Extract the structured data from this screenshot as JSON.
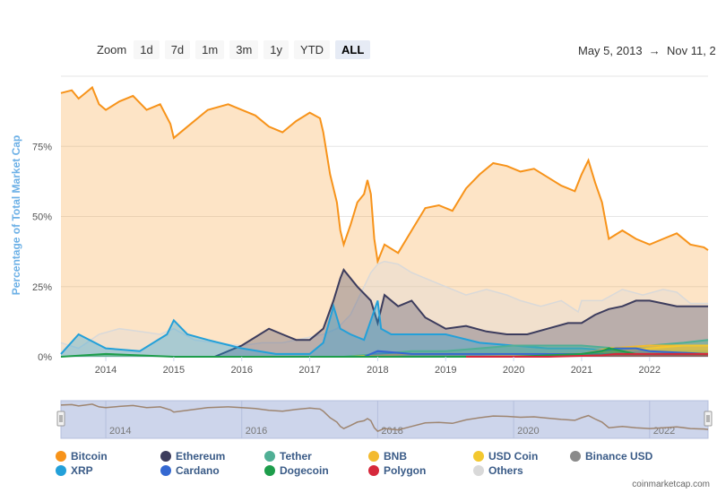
{
  "zoom": {
    "label": "Zoom",
    "buttons": [
      "1d",
      "7d",
      "1m",
      "3m",
      "1y",
      "YTD",
      "ALL"
    ],
    "active": "ALL"
  },
  "range": {
    "from": "May 5, 2013",
    "arrow": "→",
    "to": "Nov 11, 2"
  },
  "credit": "coinmarketcap.com",
  "colors": {
    "accent": "#3c8fd6",
    "bitcoin_fill": "#fde3c8",
    "navigator_fill": "#cdd5eb"
  },
  "chart_data": {
    "type": "area",
    "ylabel": "Percentage of Total Market Cap",
    "xlabel": "",
    "x_ticks": [
      "2014",
      "2015",
      "2016",
      "2017",
      "2018",
      "2019",
      "2020",
      "2021",
      "2022"
    ],
    "y_ticks": [
      "0%",
      "25%",
      "50%",
      "75%"
    ],
    "ylim": [
      0,
      100
    ],
    "xlim": [
      2013.34,
      2022.86
    ],
    "navigator_ticks": [
      "2014",
      "2016",
      "2018",
      "2020",
      "2022"
    ],
    "series": [
      {
        "name": "Bitcoin",
        "color": "#f7931a",
        "x": [
          2013.34,
          2013.5,
          2013.6,
          2013.8,
          2013.9,
          2014.0,
          2014.2,
          2014.4,
          2014.6,
          2014.8,
          2014.95,
          2015.0,
          2015.2,
          2015.5,
          2015.8,
          2016.0,
          2016.2,
          2016.4,
          2016.6,
          2016.8,
          2017.0,
          2017.15,
          2017.2,
          2017.3,
          2017.4,
          2017.45,
          2017.5,
          2017.6,
          2017.7,
          2017.8,
          2017.85,
          2017.9,
          2017.95,
          2018.0,
          2018.1,
          2018.3,
          2018.5,
          2018.7,
          2018.9,
          2019.1,
          2019.3,
          2019.5,
          2019.7,
          2019.9,
          2020.1,
          2020.3,
          2020.5,
          2020.7,
          2020.9,
          2021.0,
          2021.1,
          2021.2,
          2021.3,
          2021.4,
          2021.6,
          2021.8,
          2022.0,
          2022.2,
          2022.4,
          2022.6,
          2022.8,
          2022.86
        ],
        "values": [
          94,
          95,
          92,
          96,
          90,
          88,
          91,
          93,
          88,
          90,
          83,
          78,
          82,
          88,
          90,
          88,
          86,
          82,
          80,
          84,
          87,
          85,
          80,
          65,
          55,
          45,
          40,
          47,
          55,
          58,
          63,
          58,
          42,
          34,
          40,
          37,
          45,
          53,
          54,
          52,
          60,
          65,
          69,
          68,
          66,
          67,
          64,
          61,
          59,
          65,
          70,
          62,
          55,
          42,
          45,
          42,
          40,
          42,
          44,
          40,
          39,
          38
        ]
      },
      {
        "name": "Ethereum",
        "color": "#3c3c5d",
        "x": [
          2015.6,
          2016.0,
          2016.2,
          2016.4,
          2016.6,
          2016.8,
          2017.0,
          2017.2,
          2017.35,
          2017.45,
          2017.5,
          2017.7,
          2017.9,
          2018.0,
          2018.1,
          2018.3,
          2018.5,
          2018.7,
          2019.0,
          2019.3,
          2019.6,
          2019.9,
          2020.2,
          2020.5,
          2020.8,
          2021.0,
          2021.2,
          2021.4,
          2021.6,
          2021.8,
          2022.0,
          2022.2,
          2022.4,
          2022.6,
          2022.86
        ],
        "values": [
          0,
          4,
          7,
          10,
          8,
          6,
          6,
          10,
          20,
          28,
          31,
          25,
          20,
          12,
          22,
          18,
          20,
          14,
          10,
          11,
          9,
          8,
          8,
          10,
          12,
          12,
          15,
          17,
          18,
          20,
          20,
          19,
          18,
          18,
          18
        ]
      },
      {
        "name": "Tether",
        "color": "#50af95",
        "x": [
          2017.5,
          2018.0,
          2018.5,
          2019.0,
          2019.5,
          2020.0,
          2020.5,
          2021.0,
          2021.5,
          2022.0,
          2022.5,
          2022.86
        ],
        "values": [
          0,
          1,
          2,
          2,
          3,
          4,
          4,
          4,
          3,
          4,
          5,
          6
        ]
      },
      {
        "name": "BNB",
        "color": "#f3ba2f",
        "x": [
          2017.6,
          2018.5,
          2019.5,
          2020.5,
          2021.0,
          2021.4,
          2022.0,
          2022.5,
          2022.86
        ],
        "values": [
          0,
          1,
          1,
          1,
          1,
          3,
          4,
          4,
          4
        ]
      },
      {
        "name": "USD Coin",
        "color": "#f3c82f",
        "x": [
          2018.8,
          2019.5,
          2020.5,
          2021.0,
          2021.6,
          2022.0,
          2022.5,
          2022.86
        ],
        "values": [
          0,
          0,
          1,
          1,
          2,
          3,
          4,
          4
        ]
      },
      {
        "name": "Binance USD",
        "color": "#8a8a8a",
        "x": [
          2019.7,
          2020.5,
          2021.0,
          2021.6,
          2022.0,
          2022.5,
          2022.86
        ],
        "values": [
          0,
          0,
          1,
          1,
          1,
          1,
          1
        ]
      },
      {
        "name": "XRP",
        "color": "#23a0d9",
        "x": [
          2013.34,
          2013.6,
          2014.0,
          2014.5,
          2014.9,
          2015.0,
          2015.2,
          2015.5,
          2016.0,
          2016.5,
          2017.0,
          2017.2,
          2017.35,
          2017.45,
          2017.6,
          2017.8,
          2018.0,
          2018.05,
          2018.2,
          2018.5,
          2019.0,
          2019.5,
          2020.0,
          2020.5,
          2021.0,
          2021.5,
          2022.0,
          2022.86
        ],
        "values": [
          1,
          8,
          3,
          2,
          8,
          13,
          8,
          6,
          3,
          1,
          1,
          5,
          18,
          10,
          8,
          6,
          20,
          10,
          8,
          8,
          8,
          5,
          4,
          3,
          3,
          2,
          2,
          2
        ]
      },
      {
        "name": "Cardano",
        "color": "#3468d1",
        "x": [
          2017.8,
          2018.0,
          2018.5,
          2019.5,
          2020.5,
          2021.0,
          2021.5,
          2021.8,
          2022.0,
          2022.86
        ],
        "values": [
          0,
          2,
          1,
          1,
          1,
          1,
          3,
          3,
          2,
          1
        ]
      },
      {
        "name": "Dogecoin",
        "color": "#1d9d4b",
        "x": [
          2013.34,
          2014.0,
          2015.0,
          2017.0,
          2018.0,
          2020.0,
          2021.0,
          2021.3,
          2021.4,
          2021.8,
          2022.86
        ],
        "values": [
          0,
          1,
          0,
          0,
          0,
          0,
          1,
          2,
          3,
          1,
          1
        ]
      },
      {
        "name": "Polygon",
        "color": "#d6283b",
        "x": [
          2019.3,
          2020.5,
          2021.3,
          2021.5,
          2022.0,
          2022.86
        ],
        "values": [
          0,
          0,
          0.5,
          1,
          1,
          1
        ]
      },
      {
        "name": "Others",
        "color": "#d9d9d9",
        "x": [
          2013.34,
          2013.6,
          2013.9,
          2014.2,
          2014.5,
          2014.8,
          2015.0,
          2015.3,
          2015.6,
          2016.0,
          2016.3,
          2016.6,
          2017.0,
          2017.2,
          2017.4,
          2017.6,
          2017.8,
          2017.9,
          2018.0,
          2018.1,
          2018.3,
          2018.5,
          2018.7,
          2019.0,
          2019.3,
          2019.6,
          2019.9,
          2020.1,
          2020.4,
          2020.7,
          2020.95,
          2021.0,
          2021.3,
          2021.6,
          2021.9,
          2022.2,
          2022.4,
          2022.6,
          2022.86
        ],
        "values": [
          5,
          3,
          8,
          10,
          9,
          8,
          10,
          6,
          5,
          4,
          5,
          5,
          7,
          8,
          10,
          15,
          25,
          30,
          33,
          34,
          33,
          30,
          28,
          25,
          22,
          24,
          22,
          20,
          18,
          20,
          16,
          20,
          20,
          24,
          22,
          24,
          23,
          19,
          19
        ]
      }
    ]
  },
  "legend": [
    {
      "name": "Bitcoin",
      "color": "#f7931a"
    },
    {
      "name": "Ethereum",
      "color": "#3c3c5d"
    },
    {
      "name": "Tether",
      "color": "#50af95"
    },
    {
      "name": "BNB",
      "color": "#f3ba2f"
    },
    {
      "name": "USD Coin",
      "color": "#f3c82f"
    },
    {
      "name": "Binance USD",
      "color": "#8a8a8a"
    },
    {
      "name": "XRP",
      "color": "#23a0d9"
    },
    {
      "name": "Cardano",
      "color": "#3468d1"
    },
    {
      "name": "Dogecoin",
      "color": "#1d9d4b"
    },
    {
      "name": "Polygon",
      "color": "#d6283b"
    },
    {
      "name": "Others",
      "color": "#d9d9d9"
    }
  ]
}
